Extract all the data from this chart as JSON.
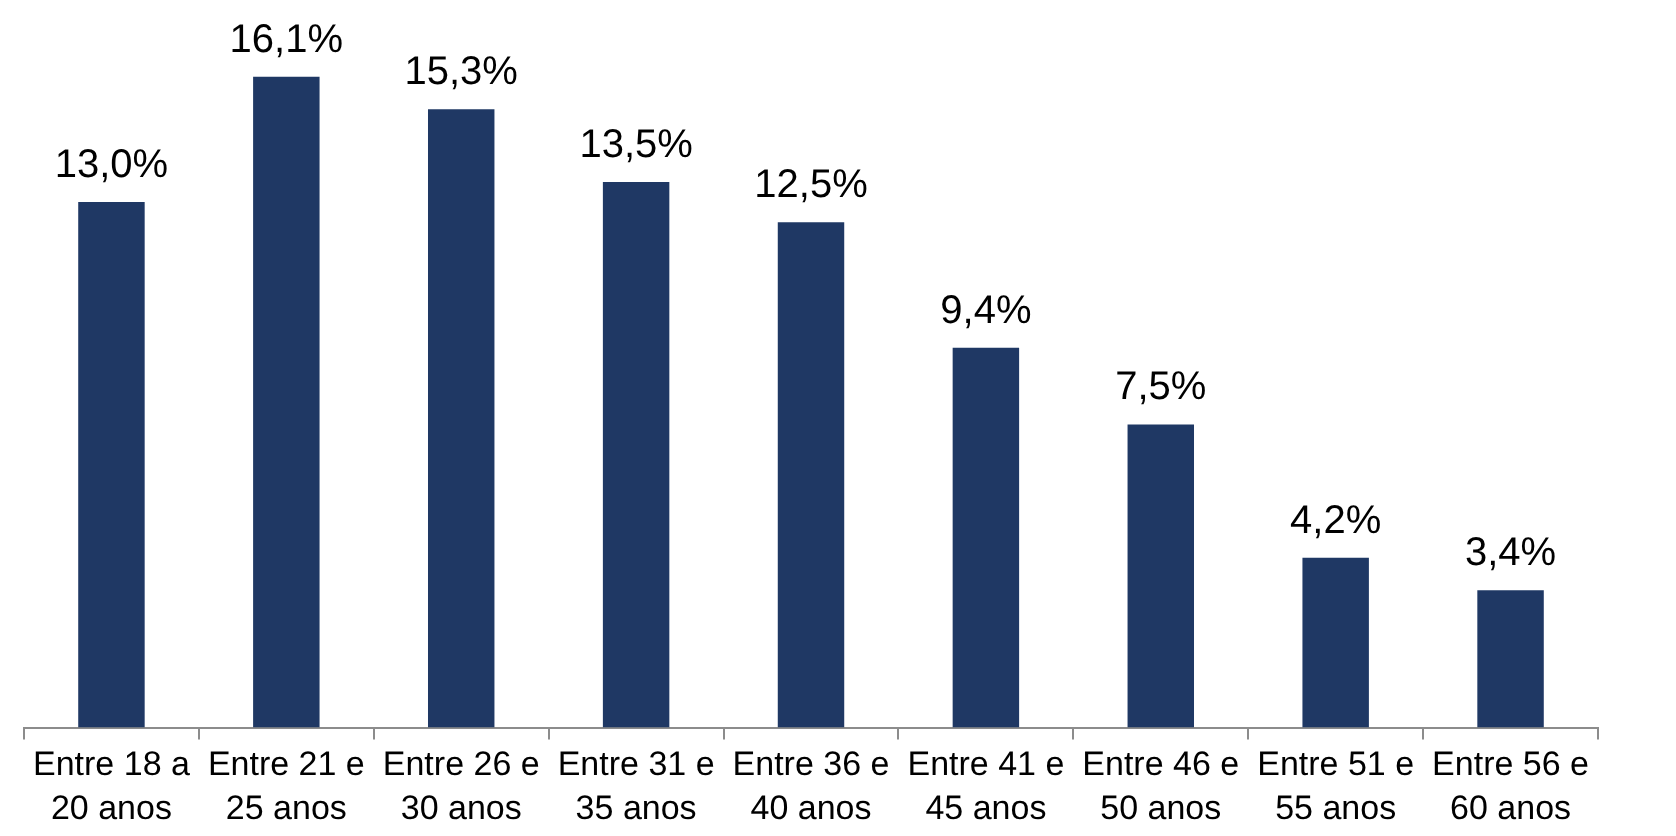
{
  "chart_data": {
    "type": "bar",
    "categories": [
      "Entre 18 a 20 anos",
      "Entre 21 e 25 anos",
      "Entre 26 e 30 anos",
      "Entre 31 e 35 anos",
      "Entre 36 e 40 anos",
      "Entre 41 e 45 anos",
      "Entre 46 e 50 anos",
      "Entre 51 e 55 anos",
      "Entre 56 e 60 anos"
    ],
    "values": [
      13.0,
      16.1,
      15.3,
      13.5,
      12.5,
      9.4,
      7.5,
      4.2,
      3.4
    ],
    "value_labels": [
      "13,0%",
      "16,1%",
      "15,3%",
      "13,5%",
      "12,5%",
      "9,4%",
      "7,5%",
      "4,2%",
      "3,4%"
    ],
    "color": "#1f3864",
    "tick_labels": "x"
  }
}
